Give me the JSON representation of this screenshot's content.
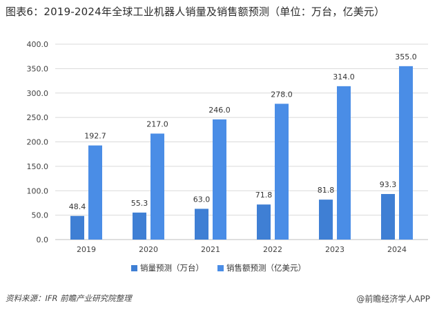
{
  "title": "图表6：2019-2024年全球工业机器人销量及销售额预测（单位：万台，亿美元）",
  "legend": {
    "series1": "销量预测（万台）",
    "series2": "销售额预测（亿美元）"
  },
  "source": "资料来源：IFR  前瞻产业研究院整理",
  "watermark": "@前瞻经济学人APP",
  "colors": {
    "series1": "#3f7fd4",
    "series2": "#4a8de6",
    "grid": "#d9d9d9",
    "axis_text": "#404040"
  },
  "chart_data": {
    "type": "bar",
    "categories": [
      "2019",
      "2020",
      "2021",
      "2022",
      "2023",
      "2024"
    ],
    "series": [
      {
        "name": "销量预测（万台）",
        "values": [
          48.4,
          55.3,
          63.0,
          71.8,
          81.8,
          93.3
        ]
      },
      {
        "name": "销售额预测（亿美元）",
        "values": [
          192.7,
          217.0,
          246.0,
          278.0,
          314.0,
          355.0
        ]
      }
    ],
    "ylim": [
      0,
      400
    ],
    "yticks": [
      0,
      50,
      100,
      150,
      200,
      250,
      300,
      350,
      400
    ],
    "grid": true,
    "legend_position": "bottom"
  }
}
